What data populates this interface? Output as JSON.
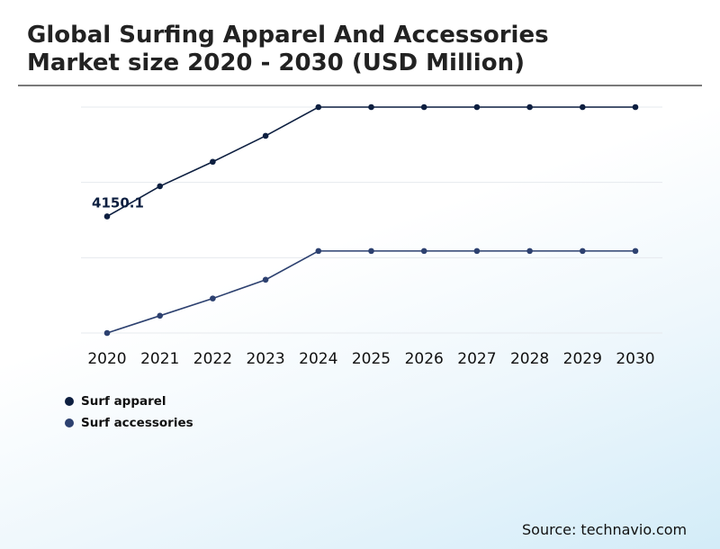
{
  "title_line1": "Global Surfing Apparel And Accessories",
  "title_line2": "Market size 2020 - 2030 (USD Million)",
  "source": "Source: technavio.com",
  "chart_data": {
    "type": "line",
    "categories": [
      "2020",
      "2021",
      "2022",
      "2023",
      "2024",
      "2025",
      "2026",
      "2027",
      "2028",
      "2029",
      "2030"
    ],
    "series": [
      {
        "name": "Surf apparel",
        "color": "#0d1f40",
        "values": [
          4150.1,
          4360,
          4530,
          4710,
          4910,
          4910,
          4910,
          4910,
          4910,
          4910,
          4910
        ]
      },
      {
        "name": "Surf accessories",
        "color": "#2d4170",
        "values": [
          3340,
          3460,
          3580,
          3710,
          3910,
          3910,
          3910,
          3910,
          3910,
          3910,
          3910
        ]
      }
    ],
    "data_labels": [
      {
        "series": 0,
        "index": 0,
        "text": "4150.1"
      }
    ],
    "ylim": [
      3340,
      4910
    ],
    "grid": true,
    "legend_position": "bottom-left"
  }
}
